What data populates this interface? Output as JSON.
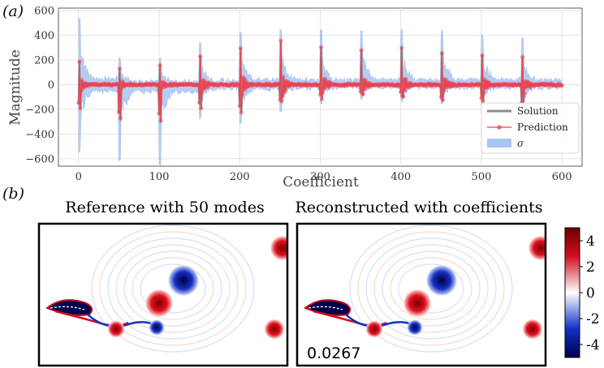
{
  "panels": {
    "a_label": "(a)",
    "b_label": "(b)"
  },
  "chart_data": [
    {
      "type": "line",
      "panel": "(a)",
      "xlabel": "Coefficient",
      "ylabel": "Magnitude",
      "xlim": [
        -25,
        625
      ],
      "ylim": [
        -660,
        620
      ],
      "xticks": [
        "0",
        "100",
        "200",
        "300",
        "400",
        "500",
        "600"
      ],
      "xtick_values": [
        0,
        100,
        200,
        300,
        400,
        500,
        600
      ],
      "yticks": [
        "−600",
        "−400",
        "−200",
        "0",
        "200",
        "400",
        "600"
      ],
      "ytick_values": [
        -600,
        -400,
        -200,
        0,
        200,
        400,
        600
      ],
      "grid": true,
      "legend_position": "lower-right",
      "series": [
        {
          "name": "Solution",
          "color": "#8c8c8c"
        },
        {
          "name": "Prediction",
          "color": "#f04050"
        },
        {
          "name": "σ",
          "color": "#a9c4f0"
        }
      ],
      "mode_groups": {
        "count": 12,
        "spacing": 50,
        "bursts": [
          {
            "start": 0,
            "peak_high": 190,
            "peak_low": -200,
            "sigma_high": 520,
            "sigma_low": -520
          },
          {
            "start": 50,
            "peak_high": 130,
            "peak_low": -290,
            "sigma_high": 200,
            "sigma_low": -600
          },
          {
            "start": 100,
            "peak_high": 160,
            "peak_low": -310,
            "sigma_high": 190,
            "sigma_low": -640
          },
          {
            "start": 150,
            "peak_high": 240,
            "peak_low": -200,
            "sigma_high": 320,
            "sigma_low": -250
          },
          {
            "start": 200,
            "peak_high": 300,
            "peak_low": -230,
            "sigma_high": 400,
            "sigma_low": -300
          },
          {
            "start": 250,
            "peak_high": 360,
            "peak_low": -150,
            "sigma_high": 430,
            "sigma_low": -200
          },
          {
            "start": 300,
            "peak_high": 300,
            "peak_low": -110,
            "sigma_high": 420,
            "sigma_low": -130
          },
          {
            "start": 350,
            "peak_high": 280,
            "peak_low": -70,
            "sigma_high": 420,
            "sigma_low": -100
          },
          {
            "start": 400,
            "peak_high": 310,
            "peak_low": -90,
            "sigma_high": 420,
            "sigma_low": -120
          },
          {
            "start": 450,
            "peak_high": 270,
            "peak_low": -130,
            "sigma_high": 420,
            "sigma_low": -150
          },
          {
            "start": 500,
            "peak_high": 250,
            "peak_low": -140,
            "sigma_high": 390,
            "sigma_low": -160
          },
          {
            "start": 550,
            "peak_high": 230,
            "peak_low": -190,
            "sigma_high": 360,
            "sigma_low": -220
          }
        ],
        "x_end": 600
      }
    },
    {
      "type": "heatmap",
      "panel": "(b)",
      "fields": [
        {
          "title": "Reference with 50 modes",
          "annotation": ""
        },
        {
          "title": "Reconstructed with coefficients",
          "annotation": "0.0267"
        }
      ],
      "colorbar": {
        "range": [
          -5,
          5
        ],
        "ticks": [
          "4",
          "2",
          "0",
          "-2",
          "-4"
        ],
        "tick_values": [
          4,
          2,
          0,
          -2,
          -4
        ],
        "colors": [
          "#00004a",
          "#1030c8",
          "#ffffff",
          "#d01020",
          "#6a0000"
        ]
      }
    }
  ]
}
